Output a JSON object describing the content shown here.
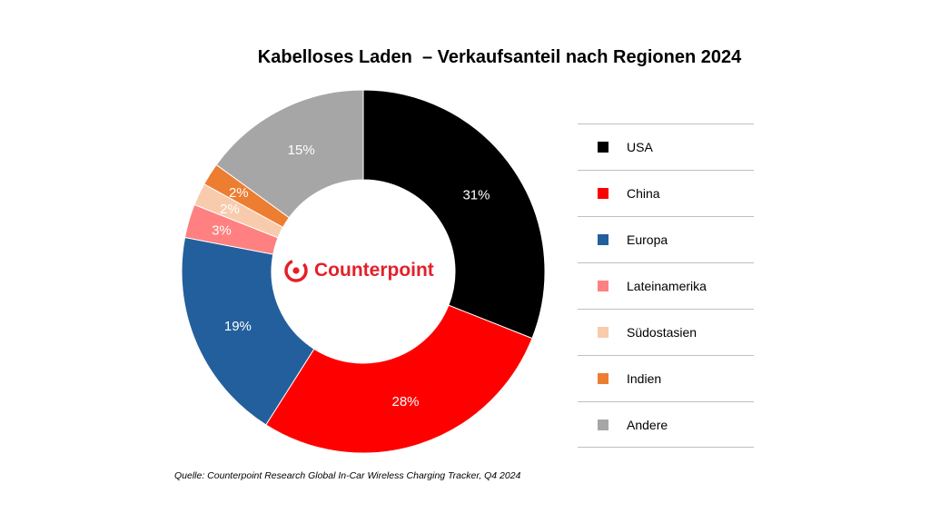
{
  "chart_data": {
    "type": "pie",
    "title": "Kabelloses Laden  – Verkaufsanteil nach Regionen 2024",
    "donut": true,
    "unit": "%",
    "slices": [
      {
        "name": "USA",
        "value": 31,
        "label": "31%",
        "color": "#000000"
      },
      {
        "name": "China",
        "value": 28,
        "label": "28%",
        "color": "#ff0000"
      },
      {
        "name": "Europa",
        "value": 19,
        "label": "19%",
        "color": "#235f9c"
      },
      {
        "name": "Lateinamerika",
        "value": 3,
        "label": "3%",
        "color": "#ff8080"
      },
      {
        "name": "Südostasien",
        "value": 2,
        "label": "2%",
        "color": "#f8cbad"
      },
      {
        "name": "Indien",
        "value": 2,
        "label": "2%",
        "color": "#ed7d31"
      },
      {
        "name": "Andere",
        "value": 15,
        "label": "15%",
        "color": "#a6a6a6"
      }
    ],
    "legend_position": "right"
  },
  "logo": {
    "text": "Counterpoint",
    "color": "#e4202a"
  },
  "source": "Quelle: Counterpoint Research Global In-Car Wireless Charging Tracker, Q4 2024"
}
